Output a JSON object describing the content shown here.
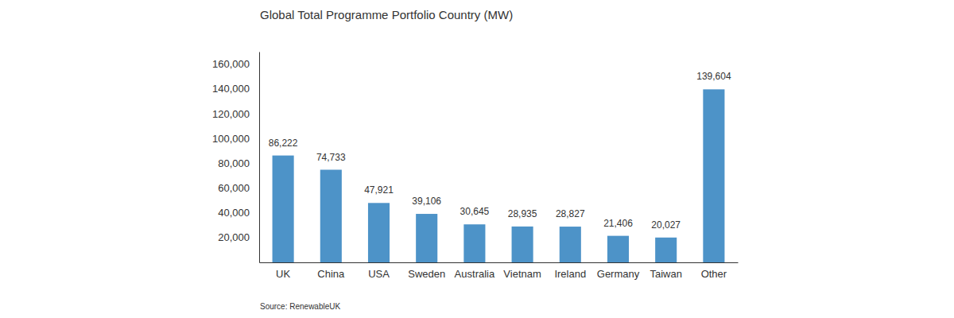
{
  "chart_data": {
    "type": "bar",
    "title": "Global Total Programme Portfolio Country (MW)",
    "source": "Source: RenewableUK",
    "categories": [
      "UK",
      "China",
      "USA",
      "Sweden",
      "Australia",
      "Vietnam",
      "Ireland",
      "Germany",
      "Taiwan",
      "Other"
    ],
    "values": [
      86222,
      74733,
      47921,
      39106,
      30645,
      28935,
      28827,
      21406,
      20027,
      139604
    ],
    "value_labels": [
      "86,222",
      "74,733",
      "47,921",
      "39,106",
      "30,645",
      "28,935",
      "28,827",
      "21,406",
      "20,027",
      "139,604"
    ],
    "color": "#4d93c8",
    "ylim": [
      0,
      170000
    ],
    "yticks": [
      {
        "value": 20000,
        "label": "20,000"
      },
      {
        "value": 40000,
        "label": "40,000"
      },
      {
        "value": 60000,
        "label": "60,000"
      },
      {
        "value": 80000,
        "label": "80,000"
      },
      {
        "value": 100000,
        "label": "100,000"
      },
      {
        "value": 120000,
        "label": "120,000"
      },
      {
        "value": 140000,
        "label": "140,000"
      },
      {
        "value": 160000,
        "label": "160,000"
      }
    ],
    "grid": false,
    "data_labels": true
  }
}
